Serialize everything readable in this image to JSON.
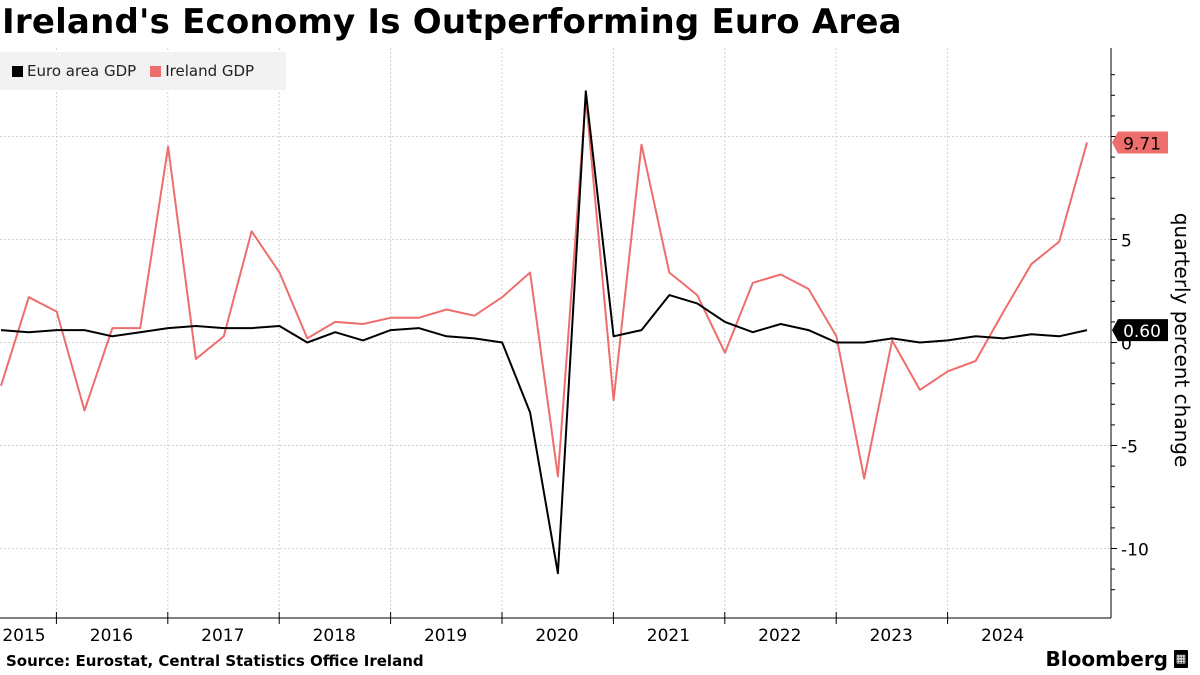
{
  "chart_data": {
    "type": "line",
    "title": "Ireland's Economy Is Outperforming Euro Area",
    "ylabel": "quarterly percent change",
    "xlabel": "",
    "ylim": [
      -13,
      14
    ],
    "yticks": [
      {
        "value": 10,
        "label": ""
      },
      {
        "value": 5,
        "label": "5"
      },
      {
        "value": 0,
        "label": "0"
      },
      {
        "value": -5,
        "label": "-5"
      },
      {
        "value": -10,
        "label": "-10"
      }
    ],
    "x_start": 2015.0,
    "x_step": 0.25,
    "year_labels": [
      "2015",
      "2016",
      "2017",
      "2018",
      "2019",
      "2020",
      "2021",
      "2022",
      "2023",
      "2024"
    ],
    "grid": true,
    "legend_position": "top-left",
    "series": [
      {
        "name": "Euro area GDP",
        "color": "#000000",
        "end_label": "0.60",
        "values": [
          0.6,
          0.5,
          0.6,
          0.6,
          0.3,
          0.5,
          0.7,
          0.8,
          0.7,
          0.7,
          0.8,
          0.0,
          0.5,
          0.1,
          0.6,
          0.7,
          0.3,
          0.2,
          0.0,
          -3.4,
          -11.2,
          12.2,
          0.3,
          0.6,
          2.3,
          1.9,
          1.0,
          0.5,
          0.9,
          0.6,
          0.0,
          0.0,
          0.2,
          0.0,
          0.1,
          0.3,
          0.2,
          0.4,
          0.3,
          0.6
        ]
      },
      {
        "name": "Ireland GDP",
        "color": "#ee6d6d",
        "end_label": "9.71",
        "values": [
          -2.1,
          2.2,
          1.5,
          -3.3,
          0.7,
          0.7,
          9.5,
          -0.8,
          0.3,
          5.4,
          3.4,
          0.2,
          1.0,
          0.9,
          1.2,
          1.2,
          1.6,
          1.3,
          2.2,
          3.4,
          -6.5,
          11.9,
          -2.8,
          9.6,
          3.4,
          2.3,
          -0.5,
          2.9,
          3.3,
          2.6,
          0.3,
          -6.6,
          0.1,
          -2.3,
          -1.4,
          -0.9,
          1.5,
          3.8,
          4.9,
          9.71
        ]
      }
    ]
  },
  "source_text": "Source: Eurostat, Central Statistics Office Ireland",
  "brand_text": "Bloomberg"
}
